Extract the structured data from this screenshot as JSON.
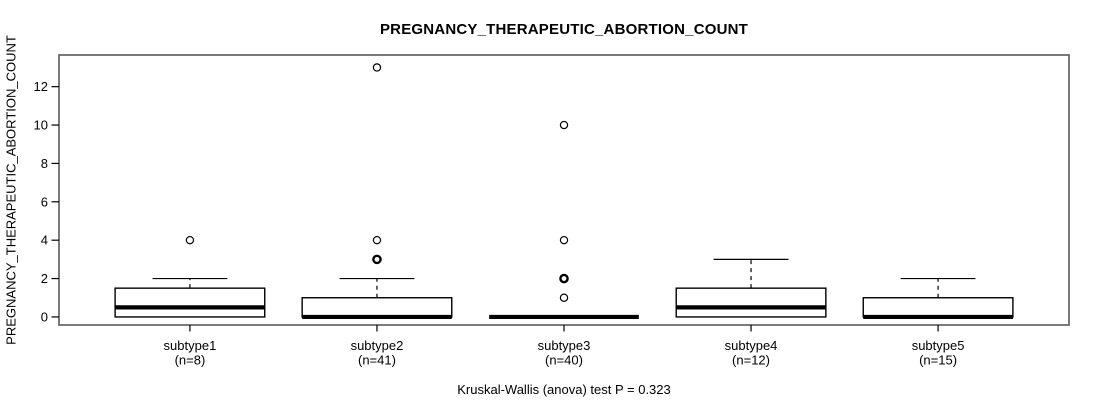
{
  "chart_data": {
    "type": "boxplot",
    "title": "PREGNANCY_THERAPEUTIC_ABORTION_COUNT",
    "ylabel": "PREGNANCY_THERAPEUTIC_ABORTION_COUNT",
    "xlabel": "",
    "footnote": "Kruskal-Wallis (anova) test P = 0.323",
    "yticks": [
      0,
      2,
      4,
      6,
      8,
      10,
      12
    ],
    "ylim": [
      -0.42,
      13.65
    ],
    "grid": false,
    "legend": null,
    "categories": [
      "subtype1",
      "subtype2",
      "subtype3",
      "subtype4",
      "subtype5"
    ],
    "colors": {
      "box_fill": "#ffffff",
      "box_stroke": "#000000",
      "frame_stroke": "#5a5a5a",
      "tick_stroke": "#000000",
      "outlier_stroke": "#000000"
    },
    "series": [
      {
        "name": "subtype1",
        "n_label": "(n=8)",
        "n": 8,
        "q1": 0,
        "median": 0.5,
        "q3": 1.5,
        "whisker_low": 0,
        "whisker_high": 2,
        "outliers": [
          4
        ]
      },
      {
        "name": "subtype2",
        "n_label": "(n=41)",
        "n": 41,
        "q1": 0,
        "median": 0,
        "q3": 1,
        "whisker_low": 0,
        "whisker_high": 2,
        "outliers": [
          3,
          3,
          4,
          13
        ]
      },
      {
        "name": "subtype3",
        "n_label": "(n=40)",
        "n": 40,
        "q1": 0,
        "median": 0,
        "q3": 0,
        "whisker_low": 0,
        "whisker_high": 0,
        "outliers": [
          1,
          2,
          2,
          4,
          10
        ]
      },
      {
        "name": "subtype4",
        "n_label": "(n=12)",
        "n": 12,
        "q1": 0,
        "median": 0.5,
        "q3": 1.5,
        "whisker_low": 0,
        "whisker_high": 3,
        "outliers": []
      },
      {
        "name": "subtype5",
        "n_label": "(n=15)",
        "n": 15,
        "q1": 0,
        "median": 0,
        "q3": 1,
        "whisker_low": 0,
        "whisker_high": 2,
        "outliers": []
      }
    ]
  }
}
